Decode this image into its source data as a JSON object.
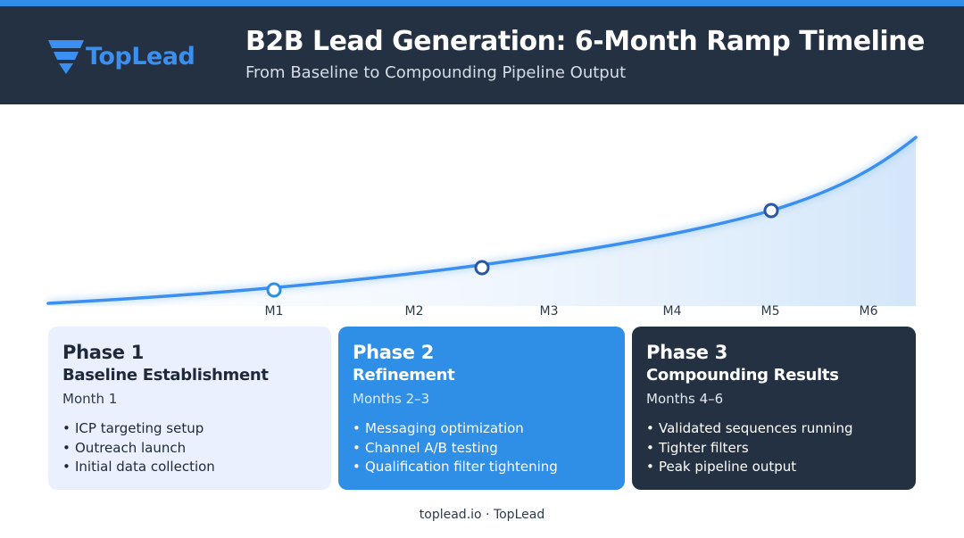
{
  "header": {
    "logo_text": "TopLead",
    "title": "B2B Lead Generation: 6-Month Ramp Timeline",
    "subtitle": "From Baseline to Compounding Pipeline Output"
  },
  "timeline": {
    "months": [
      "M1",
      "M2",
      "M3",
      "M4",
      "M5",
      "M6"
    ],
    "milestones": [
      "M1",
      "M2-M3",
      "M5"
    ]
  },
  "phases": [
    {
      "phase": "Phase 1",
      "name": "Baseline Establishment",
      "range": "Month 1",
      "bullets": [
        "ICP targeting setup",
        "Outreach launch",
        "Initial data collection"
      ]
    },
    {
      "phase": "Phase 2",
      "name": "Refinement",
      "range": "Months 2–3",
      "bullets": [
        "Messaging optimization",
        "Channel A/B testing",
        "Qualification filter tightening"
      ]
    },
    {
      "phase": "Phase 3",
      "name": "Compounding Results",
      "range": "Months 4–6",
      "bullets": [
        "Validated sequences running",
        "Tighter filters",
        "Peak pipeline output"
      ]
    }
  ],
  "footer": {
    "text": "toplead.io · TopLead"
  },
  "colors": {
    "header_bg": "#243142",
    "accent_blue": "#2f8ee5",
    "phase1_bg": "#eaf0fd",
    "phase3_bg": "#243142"
  }
}
